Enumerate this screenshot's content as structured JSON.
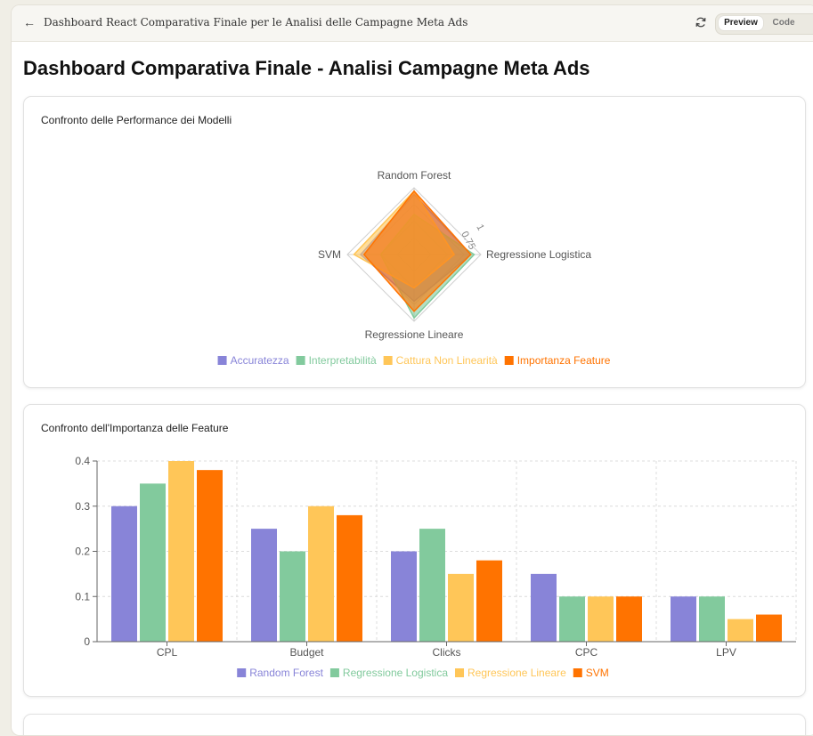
{
  "topbar": {
    "title": "Dashboard React Comparativa Finale per le Analisi delle Campagne Meta Ads",
    "preview_label": "Preview",
    "code_label": "Code"
  },
  "page": {
    "title": "Dashboard Comparativa Finale - Analisi Campagne Meta Ads"
  },
  "colors": {
    "accuratezza": "#8884d8",
    "interpretabilita": "#82ca9d",
    "cattura": "#ffc658",
    "importanza": "#ff7300"
  },
  "chart_data": [
    {
      "type": "radar",
      "title": "Confronto delle Performance dei Modelli",
      "axes": [
        "Random Forest",
        "Regressione Logistica",
        "Regressione Lineare",
        "SVM"
      ],
      "radial_ticks": [
        "0.75",
        "1"
      ],
      "radial_max": 1,
      "legend_position": "bottom",
      "series": [
        {
          "name": "Accuratezza",
          "color": "#8884d8",
          "values": [
            0.9,
            0.85,
            0.7,
            0.8
          ]
        },
        {
          "name": "Interpretabilità",
          "color": "#82ca9d",
          "values": [
            0.6,
            0.9,
            0.95,
            0.5
          ]
        },
        {
          "name": "Cattura Non Linearità",
          "color": "#ffc658",
          "values": [
            0.95,
            0.6,
            0.5,
            0.9
          ]
        },
        {
          "name": "Importanza Feature",
          "color": "#ff7300",
          "values": [
            0.95,
            0.85,
            0.85,
            0.75
          ]
        }
      ]
    },
    {
      "type": "bar",
      "title": "Confronto dell'Importanza delle Feature",
      "categories": [
        "CPL",
        "Budget",
        "Clicks",
        "CPC",
        "LPV"
      ],
      "ylim": [
        0,
        0.4
      ],
      "yticks": [
        0,
        0.1,
        0.2,
        0.3,
        0.4
      ],
      "ytick_labels": [
        "0",
        "0.1",
        "0.2",
        "0.3",
        "0.4"
      ],
      "grid": true,
      "legend_position": "bottom",
      "series": [
        {
          "name": "Random Forest",
          "color": "#8884d8",
          "values": [
            0.3,
            0.25,
            0.2,
            0.15,
            0.1
          ]
        },
        {
          "name": "Regressione Logistica",
          "color": "#82ca9d",
          "values": [
            0.35,
            0.2,
            0.25,
            0.1,
            0.1
          ]
        },
        {
          "name": "Regressione Lineare",
          "color": "#ffc658",
          "values": [
            0.4,
            0.3,
            0.15,
            0.1,
            0.05
          ]
        },
        {
          "name": "SVM",
          "color": "#ff7300",
          "values": [
            0.38,
            0.28,
            0.18,
            0.1,
            0.06
          ]
        }
      ]
    }
  ]
}
